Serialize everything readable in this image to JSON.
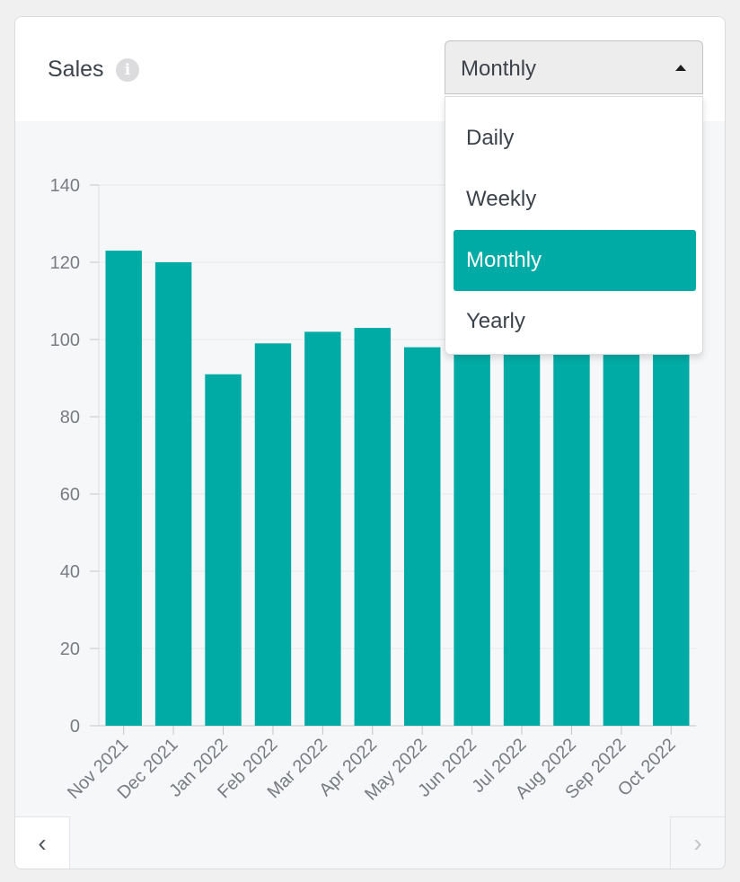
{
  "header": {
    "title": "Sales",
    "info_icon": "info-icon",
    "info_glyph": "i"
  },
  "period_select": {
    "value": "Monthly",
    "options": [
      "Daily",
      "Weekly",
      "Monthly",
      "Yearly"
    ],
    "selected_index": 2
  },
  "colors": {
    "bar": "#00aba6",
    "accent": "#00aba6"
  },
  "scroll": {
    "left_glyph": "‹",
    "right_glyph": "›"
  },
  "chart_data": {
    "type": "bar",
    "categories": [
      "Nov 2021",
      "Dec 2021",
      "Jan 2022",
      "Feb 2022",
      "Mar 2022",
      "Apr 2022",
      "May 2022",
      "Jun 2022",
      "Jul 2022",
      "Aug 2022",
      "Sep 2022",
      "Oct 2022"
    ],
    "values": [
      123,
      120,
      91,
      99,
      102,
      103,
      98,
      98,
      97,
      98,
      98,
      98
    ],
    "ylim": [
      0,
      140
    ],
    "yticks": [
      0,
      20,
      40,
      60,
      80,
      100,
      120,
      140
    ],
    "grid": true,
    "title": "",
    "xlabel": "",
    "ylabel": ""
  }
}
